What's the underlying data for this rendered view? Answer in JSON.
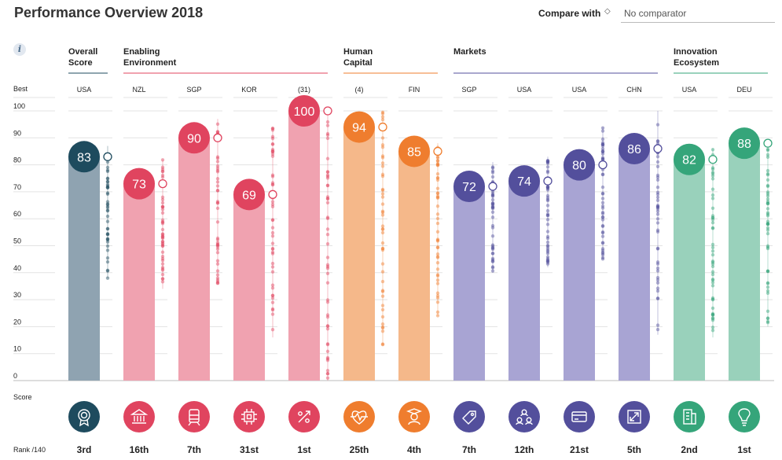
{
  "title": "Performance Overview 2018",
  "compare": {
    "label": "Compare with",
    "placeholder": "No comparator"
  },
  "labels": {
    "info": "i",
    "best": "Best",
    "score": "Score",
    "rank": "Rank /140"
  },
  "colors": {
    "overall": "#1e4b5e",
    "overall_light": "#8fa3b1",
    "enabling": "#e0445f",
    "enabling_light": "#f0a2b0",
    "human": "#ef7d2e",
    "human_light": "#f5b88a",
    "markets": "#534f9c",
    "markets_light": "#a8a4d3",
    "innovation": "#35a57a",
    "innovation_light": "#99d1bb"
  },
  "chart_data": {
    "type": "bar",
    "ylim": [
      0,
      100
    ],
    "yticks": [
      0,
      10,
      20,
      30,
      40,
      50,
      60,
      70,
      80,
      90,
      100
    ],
    "groups": [
      {
        "name": "Overall Score",
        "color_key": "overall",
        "span": [
          0,
          0
        ]
      },
      {
        "name": "Enabling Environment",
        "color_key": "enabling",
        "span": [
          1,
          4
        ]
      },
      {
        "name": "Human Capital",
        "color_key": "human",
        "span": [
          5,
          6
        ]
      },
      {
        "name": "Markets",
        "color_key": "markets",
        "span": [
          7,
          10
        ]
      },
      {
        "name": "Innovation Ecosystem",
        "color_key": "innovation",
        "span": [
          11,
          12
        ]
      }
    ],
    "bars": [
      {
        "best": "USA",
        "score": 83,
        "rank": "3rd",
        "icon": "award-icon",
        "color_key": "overall",
        "dist": [
          38,
          87
        ]
      },
      {
        "best": "NZL",
        "score": 73,
        "rank": "16th",
        "icon": "institution-icon",
        "color_key": "enabling",
        "dist": [
          34,
          82
        ]
      },
      {
        "best": "SGP",
        "score": 90,
        "rank": "7th",
        "icon": "infrastructure-icon",
        "color_key": "enabling",
        "dist": [
          36,
          97
        ]
      },
      {
        "best": "KOR",
        "score": 69,
        "rank": "31st",
        "icon": "ict-chip-icon",
        "color_key": "enabling",
        "dist": [
          16,
          94
        ]
      },
      {
        "best": "(31)",
        "score": 100,
        "rank": "1st",
        "icon": "percent-icon",
        "color_key": "enabling",
        "dist": [
          0,
          100
        ]
      },
      {
        "best": "(4)",
        "score": 94,
        "rank": "25th",
        "icon": "health-heart-icon",
        "color_key": "human",
        "dist": [
          13,
          100
        ]
      },
      {
        "best": "FIN",
        "score": 85,
        "rank": "4th",
        "icon": "skills-graduate-icon",
        "color_key": "human",
        "dist": [
          24,
          88
        ]
      },
      {
        "best": "SGP",
        "score": 72,
        "rank": "7th",
        "icon": "price-tag-icon",
        "color_key": "markets",
        "dist": [
          40,
          81
        ]
      },
      {
        "best": "USA",
        "score": 74,
        "rank": "12th",
        "icon": "people-network-icon",
        "color_key": "markets",
        "dist": [
          42,
          83
        ]
      },
      {
        "best": "USA",
        "score": 80,
        "rank": "21st",
        "icon": "credit-card-icon",
        "color_key": "markets",
        "dist": [
          45,
          94
        ]
      },
      {
        "best": "CHN",
        "score": 86,
        "rank": "5th",
        "icon": "expand-arrows-icon",
        "color_key": "markets",
        "dist": [
          17,
          100
        ]
      },
      {
        "best": "USA",
        "score": 82,
        "rank": "2nd",
        "icon": "building-icon",
        "color_key": "innovation",
        "dist": [
          16,
          86
        ]
      },
      {
        "best": "DEU",
        "score": 88,
        "rank": "1st",
        "icon": "lightbulb-icon",
        "color_key": "innovation",
        "dist": [
          20,
          87
        ]
      }
    ]
  }
}
